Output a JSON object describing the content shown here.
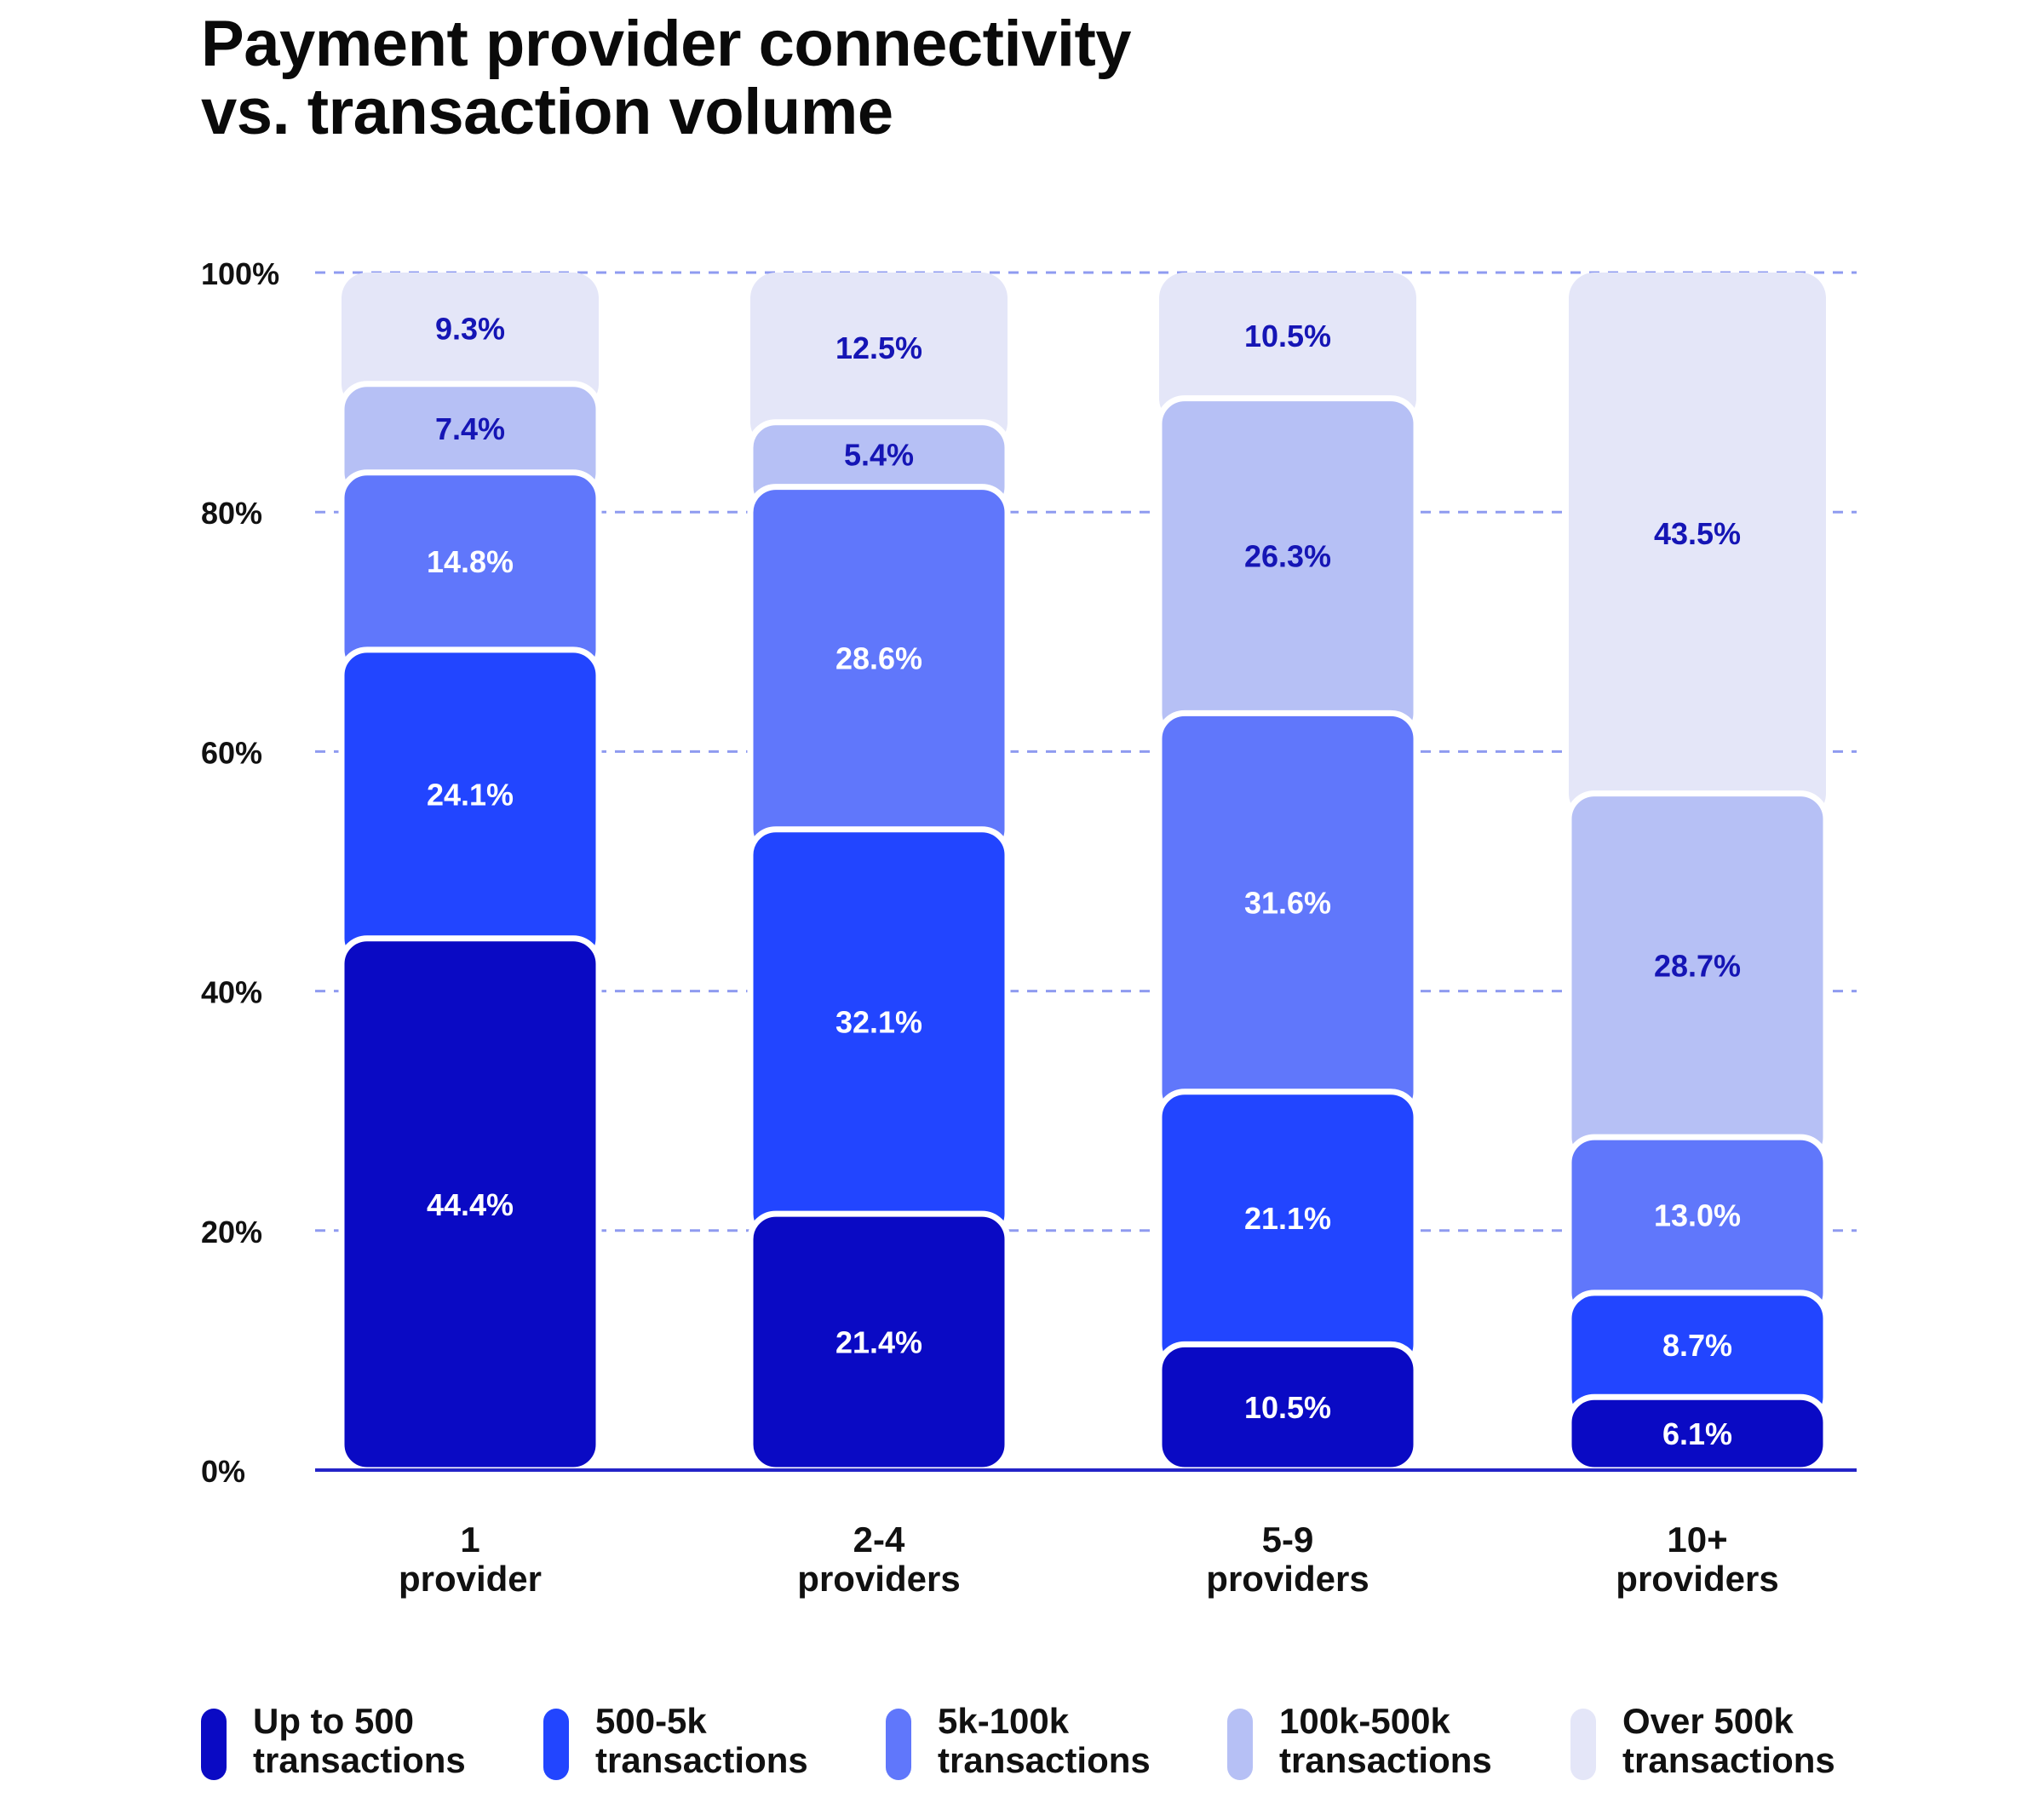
{
  "title": {
    "line1": "Payment provider connectivity",
    "line2": "vs. transaction volume"
  },
  "chart_data": {
    "type": "bar",
    "stacked": true,
    "categories": [
      {
        "line1": "1",
        "line2": "provider"
      },
      {
        "line1": "2-4",
        "line2": "providers"
      },
      {
        "line1": "5-9",
        "line2": "providers"
      },
      {
        "line1": "10+",
        "line2": "providers"
      }
    ],
    "series": [
      {
        "name": "Up to 500 transactions",
        "legend_line1": "Up to 500",
        "legend_line2": "transactions",
        "color": "#0a0ac4",
        "label_color": "#ffffff",
        "values": [
          44.4,
          21.4,
          10.5,
          6.1
        ],
        "labels": [
          "44.4%",
          "21.4%",
          "10.5%",
          "6.1%"
        ]
      },
      {
        "name": "500-5k transactions",
        "legend_line1": "500-5k",
        "legend_line2": "transactions",
        "color": "#2245ff",
        "label_color": "#ffffff",
        "values": [
          24.1,
          32.1,
          21.1,
          8.7
        ],
        "labels": [
          "24.1%",
          "32.1%",
          "21.1%",
          "8.7%"
        ]
      },
      {
        "name": "5k-100k transactions",
        "legend_line1": "5k-100k",
        "legend_line2": "transactions",
        "color": "#6077fb",
        "label_color": "#ffffff",
        "values": [
          14.8,
          28.6,
          31.6,
          13.0
        ],
        "labels": [
          "14.8%",
          "28.6%",
          "31.6%",
          "13.0%"
        ]
      },
      {
        "name": "100k-500k transactions",
        "legend_line1": "100k-500k",
        "legend_line2": "transactions",
        "color": "#b6c0f5",
        "label_color": "#1515b5",
        "values": [
          7.4,
          5.4,
          26.3,
          28.7
        ],
        "labels": [
          "7.4%",
          "5.4%",
          "26.3%",
          "28.7%"
        ]
      },
      {
        "name": "Over 500k transactions",
        "legend_line1": "Over 500k",
        "legend_line2": "transactions",
        "color": "#e4e6f8",
        "label_color": "#1515b5",
        "values": [
          9.3,
          12.5,
          10.5,
          43.5
        ],
        "labels": [
          "9.3%",
          "12.5%",
          "10.5%",
          "43.5%"
        ]
      }
    ],
    "y_ticks": [
      "0%",
      "20%",
      "40%",
      "60%",
      "80%",
      "100%"
    ],
    "ylim": [
      0,
      100
    ],
    "grid": true,
    "grid_color": "#8f9bf0",
    "axis_color": "#2424c8",
    "legend_position": "bottom"
  }
}
